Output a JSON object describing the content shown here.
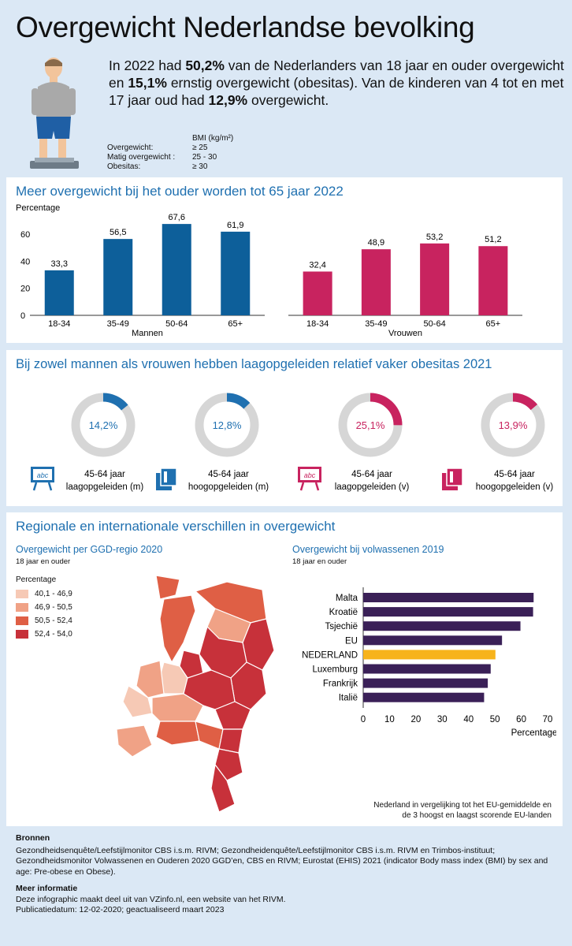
{
  "header": {
    "title": "Overgewicht Nederlandse bevolking",
    "intro_parts": [
      "In 2022 had ",
      "50,2%",
      " van de Nederlanders van 18 jaar en ouder overgewicht en ",
      "15,1%",
      " ernstig overgewicht (obesitas). Van de kinderen van 4 tot en met 17 jaar oud had ",
      "12,9%",
      " overgewicht."
    ],
    "bmi_header": "BMI (kg/m²)",
    "bmi_rows": [
      {
        "label": "Overgewicht:",
        "value": "≥ 25"
      },
      {
        "label": "Matig overgewicht :",
        "value": "25 - 30"
      },
      {
        "label": "Obesitas:",
        "value": "≥ 30"
      }
    ]
  },
  "age_section": {
    "title": "Meer overgewicht bij het ouder worden tot 65 jaar 2022",
    "ylabel": "Percentage"
  },
  "edu_section": {
    "title": "Bij zowel mannen als vrouwen hebben laagopgeleiden relatief vaker obesitas 2021",
    "donuts": [
      {
        "value_label": "14,2%",
        "value": 14.2,
        "color": "#1f70b0",
        "line1": "45-64 jaar",
        "line2": "laagopgeleiden (m)",
        "icon": "abc-board-icon"
      },
      {
        "value_label": "12,8%",
        "value": 12.8,
        "color": "#1f70b0",
        "line1": "45-64 jaar",
        "line2": "hoogopgeleiden (m)",
        "icon": "books-icon"
      },
      {
        "value_label": "25,1%",
        "value": 25.1,
        "color": "#c8235f",
        "line1": "45-64 jaar",
        "line2": "laagopgeleiden (v)",
        "icon": "abc-board-icon"
      },
      {
        "value_label": "13,9%",
        "value": 13.9,
        "color": "#c8235f",
        "line1": "45-64 jaar",
        "line2": "hoogopgeleiden (v)",
        "icon": "books-icon"
      }
    ]
  },
  "region_section": {
    "title": "Regionale en internationale verschillen in overgewicht",
    "map_title": "Overgewicht per GGD-regio 2020",
    "map_sub": "18 jaar en ouder",
    "legend_title": "Percentage",
    "legend": [
      {
        "label": "40,1 - 46,9",
        "color": "#f6c9b5"
      },
      {
        "label": "46,9 - 50,5",
        "color": "#f0a286"
      },
      {
        "label": "50,5 - 52,4",
        "color": "#df5f45"
      },
      {
        "label": "52,4 - 54,0",
        "color": "#c7313a"
      }
    ],
    "eu_title": "Overgewicht bij volwassenen 2019",
    "eu_sub": "18 jaar en ouder",
    "eu_note_line1": "Nederland in vergelijking tot het EU-gemiddelde en",
    "eu_note_line2": "de 3 hoogst en laagst scorende EU-landen"
  },
  "sources": {
    "heading": "Bronnen",
    "text": "Gezondheidsenquête/Leefstijlmonitor CBS i.s.m. RIVM; Gezondheidenquête/Leefstijlmonitor CBS i.s.m. RIVM en Trimbos-instituut; Gezondheidsmonitor Volwassenen en Ouderen 2020 GGD’en, CBS en RIVM; Eurostat (EHIS) 2021 (indicator Body mass index (BMI) by sex and age: Pre-obese en Obese).",
    "more_heading": "Meer informatie",
    "more_line1": "Deze infographic maakt deel uit van VZinfo.nl, een website van het RIVM.",
    "more_line2": "Publicatiedatum: 12-02-2020; geactualiseerd maart 2023"
  },
  "chart_data": [
    {
      "type": "bar",
      "xlabel": "Mannen",
      "ylabel": "Percentage",
      "categories": [
        "18-34",
        "35-49",
        "50-64",
        "65+"
      ],
      "values": [
        33.3,
        56.5,
        67.6,
        61.9
      ],
      "value_labels": [
        "33,3",
        "56,5",
        "67,6",
        "61,9"
      ],
      "ylim": [
        0,
        70
      ],
      "yticks": [
        0,
        20,
        40,
        60
      ],
      "color": "#0d5f9a"
    },
    {
      "type": "bar",
      "xlabel": "Vrouwen",
      "categories": [
        "18-34",
        "35-49",
        "50-64",
        "65+"
      ],
      "values": [
        32.4,
        48.9,
        53.2,
        51.2
      ],
      "value_labels": [
        "32,4",
        "48,9",
        "53,2",
        "51,2"
      ],
      "ylim": [
        0,
        70
      ],
      "color": "#c8235f"
    },
    {
      "type": "bar",
      "orientation": "horizontal",
      "xlabel": "Percentage",
      "categories": [
        "Malta",
        "Kroatië",
        "Tsjechië",
        "EU",
        "NEDERLAND",
        "Luxemburg",
        "Frankrijk",
        "Italië"
      ],
      "values": [
        64.7,
        64.5,
        59.7,
        52.7,
        50.2,
        48.4,
        47.3,
        45.9
      ],
      "xlim": [
        0,
        70
      ],
      "xticks": [
        0,
        10,
        20,
        30,
        40,
        50,
        60,
        70
      ],
      "color": "#3a2057",
      "highlight": {
        "category": "NEDERLAND",
        "color": "#f7b31b"
      }
    }
  ]
}
